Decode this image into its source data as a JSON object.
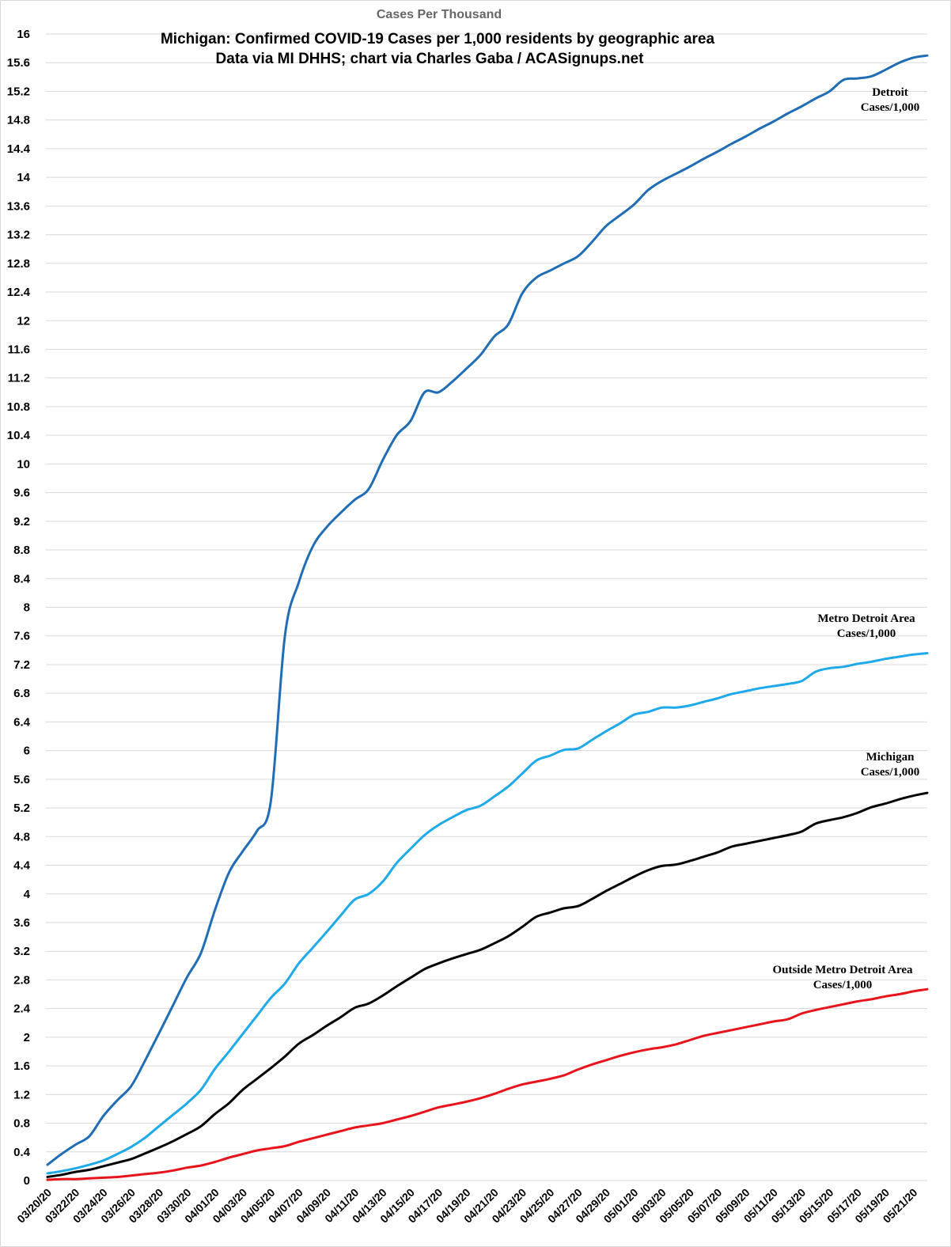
{
  "chart_data": {
    "type": "line",
    "header": "Cases Per Thousand",
    "title": "Michigan: Confirmed COVID-19 Cases per 1,000 residents by geographic area",
    "subtitle": "Data via MI DHHS; chart via Charles Gaba / ACASignups.net",
    "xlabel": "",
    "ylabel": "",
    "ylim": [
      0,
      16
    ],
    "ytick_step": 0.4,
    "grid": true,
    "x": [
      "03/20/20",
      "03/21/20",
      "03/22/20",
      "03/23/20",
      "03/24/20",
      "03/25/20",
      "03/26/20",
      "03/27/20",
      "03/28/20",
      "03/29/20",
      "03/30/20",
      "03/31/20",
      "04/01/20",
      "04/02/20",
      "04/03/20",
      "04/04/20",
      "04/05/20",
      "04/06/20",
      "04/07/20",
      "04/08/20",
      "04/09/20",
      "04/10/20",
      "04/11/20",
      "04/12/20",
      "04/13/20",
      "04/14/20",
      "04/15/20",
      "04/16/20",
      "04/17/20",
      "04/18/20",
      "04/19/20",
      "04/20/20",
      "04/21/20",
      "04/22/20",
      "04/23/20",
      "04/24/20",
      "04/25/20",
      "04/26/20",
      "04/27/20",
      "04/28/20",
      "04/29/20",
      "04/30/20",
      "05/01/20",
      "05/02/20",
      "05/03/20",
      "05/04/20",
      "05/05/20",
      "05/06/20",
      "05/07/20",
      "05/08/20",
      "05/09/20",
      "05/10/20",
      "05/11/20",
      "05/12/20",
      "05/13/20",
      "05/14/20",
      "05/15/20",
      "05/16/20",
      "05/17/20",
      "05/18/20",
      "05/19/20",
      "05/20/20",
      "05/21/20",
      "05/22/20"
    ],
    "tick_labels": [
      "03/20/20",
      "03/22/20",
      "03/24/20",
      "03/26/20",
      "03/28/20",
      "03/30/20",
      "04/01/20",
      "04/03/20",
      "04/05/20",
      "04/07/20",
      "04/09/20",
      "04/11/20",
      "04/13/20",
      "04/15/20",
      "04/17/20",
      "04/19/20",
      "04/21/20",
      "04/23/20",
      "04/25/20",
      "04/27/20",
      "04/29/20",
      "05/01/20",
      "05/03/20",
      "05/05/20",
      "05/07/20",
      "05/09/20",
      "05/11/20",
      "05/13/20",
      "05/15/20",
      "05/17/20",
      "05/19/20",
      "05/21/20"
    ],
    "series": [
      {
        "name": "Detroit Cases/1,000",
        "label_lines": [
          "Detroit",
          "Cases/1,000"
        ],
        "color": "#1f6db4",
        "values": [
          0.22,
          0.37,
          0.5,
          0.62,
          0.9,
          1.12,
          1.32,
          1.68,
          2.06,
          2.45,
          2.84,
          3.18,
          3.78,
          4.3,
          4.6,
          4.88,
          5.3,
          7.6,
          8.35,
          8.85,
          9.12,
          9.32,
          9.5,
          9.65,
          10.05,
          10.4,
          10.6,
          11.0,
          11.0,
          11.15,
          11.33,
          11.52,
          11.78,
          11.95,
          12.38,
          12.6,
          12.7,
          12.8,
          12.9,
          13.1,
          13.32,
          13.47,
          13.62,
          13.82,
          13.95,
          14.05,
          14.15,
          14.26,
          14.36,
          14.47,
          14.57,
          14.68,
          14.78,
          14.89,
          14.99,
          15.1,
          15.2,
          15.36,
          15.38,
          15.41,
          15.5,
          15.6,
          15.67,
          15.7
        ]
      },
      {
        "name": "Metro Detroit Area Cases/1,000",
        "label_lines": [
          "Metro Detroit Area",
          "Cases/1,000"
        ],
        "color": "#1eaaea",
        "values": [
          0.1,
          0.13,
          0.17,
          0.22,
          0.28,
          0.37,
          0.47,
          0.6,
          0.76,
          0.92,
          1.08,
          1.27,
          1.56,
          1.8,
          2.05,
          2.3,
          2.55,
          2.75,
          3.03,
          3.25,
          3.47,
          3.7,
          3.92,
          4.0,
          4.17,
          4.43,
          4.63,
          4.82,
          4.96,
          5.07,
          5.17,
          5.23,
          5.36,
          5.5,
          5.68,
          5.86,
          5.93,
          6.01,
          6.03,
          6.15,
          6.27,
          6.38,
          6.5,
          6.54,
          6.6,
          6.6,
          6.63,
          6.68,
          6.73,
          6.79,
          6.83,
          6.87,
          6.9,
          6.93,
          6.97,
          7.1,
          7.15,
          7.17,
          7.21,
          7.24,
          7.28,
          7.31,
          7.34,
          7.36
        ]
      },
      {
        "name": "Michigan Cases/1,000",
        "label_lines": [
          "Michigan",
          "Cases/1,000"
        ],
        "color": "#000000",
        "values": [
          0.05,
          0.08,
          0.12,
          0.15,
          0.2,
          0.25,
          0.3,
          0.38,
          0.46,
          0.55,
          0.65,
          0.76,
          0.93,
          1.08,
          1.27,
          1.42,
          1.57,
          1.73,
          1.91,
          2.03,
          2.16,
          2.28,
          2.41,
          2.47,
          2.58,
          2.71,
          2.83,
          2.95,
          3.03,
          3.1,
          3.16,
          3.22,
          3.31,
          3.41,
          3.54,
          3.68,
          3.74,
          3.8,
          3.83,
          3.93,
          4.04,
          4.14,
          4.24,
          4.33,
          4.39,
          4.41,
          4.46,
          4.52,
          4.58,
          4.66,
          4.7,
          4.74,
          4.78,
          4.82,
          4.87,
          4.98,
          5.03,
          5.07,
          5.13,
          5.21,
          5.26,
          5.32,
          5.37,
          5.41
        ]
      },
      {
        "name": "Outside Metro Detroit Area Cases/1,000",
        "label_lines": [
          "Outside Metro Detroit Area",
          "Cases/1,000"
        ],
        "color": "#e8141b",
        "values": [
          0.01,
          0.02,
          0.02,
          0.03,
          0.04,
          0.05,
          0.07,
          0.09,
          0.11,
          0.14,
          0.18,
          0.21,
          0.26,
          0.32,
          0.37,
          0.42,
          0.45,
          0.48,
          0.54,
          0.59,
          0.64,
          0.69,
          0.74,
          0.77,
          0.8,
          0.85,
          0.9,
          0.96,
          1.02,
          1.06,
          1.1,
          1.15,
          1.21,
          1.28,
          1.34,
          1.38,
          1.42,
          1.47,
          1.55,
          1.62,
          1.68,
          1.74,
          1.79,
          1.83,
          1.86,
          1.9,
          1.96,
          2.02,
          2.06,
          2.1,
          2.14,
          2.18,
          2.22,
          2.25,
          2.33,
          2.38,
          2.42,
          2.46,
          2.5,
          2.53,
          2.57,
          2.6,
          2.64,
          2.67
        ]
      }
    ]
  }
}
